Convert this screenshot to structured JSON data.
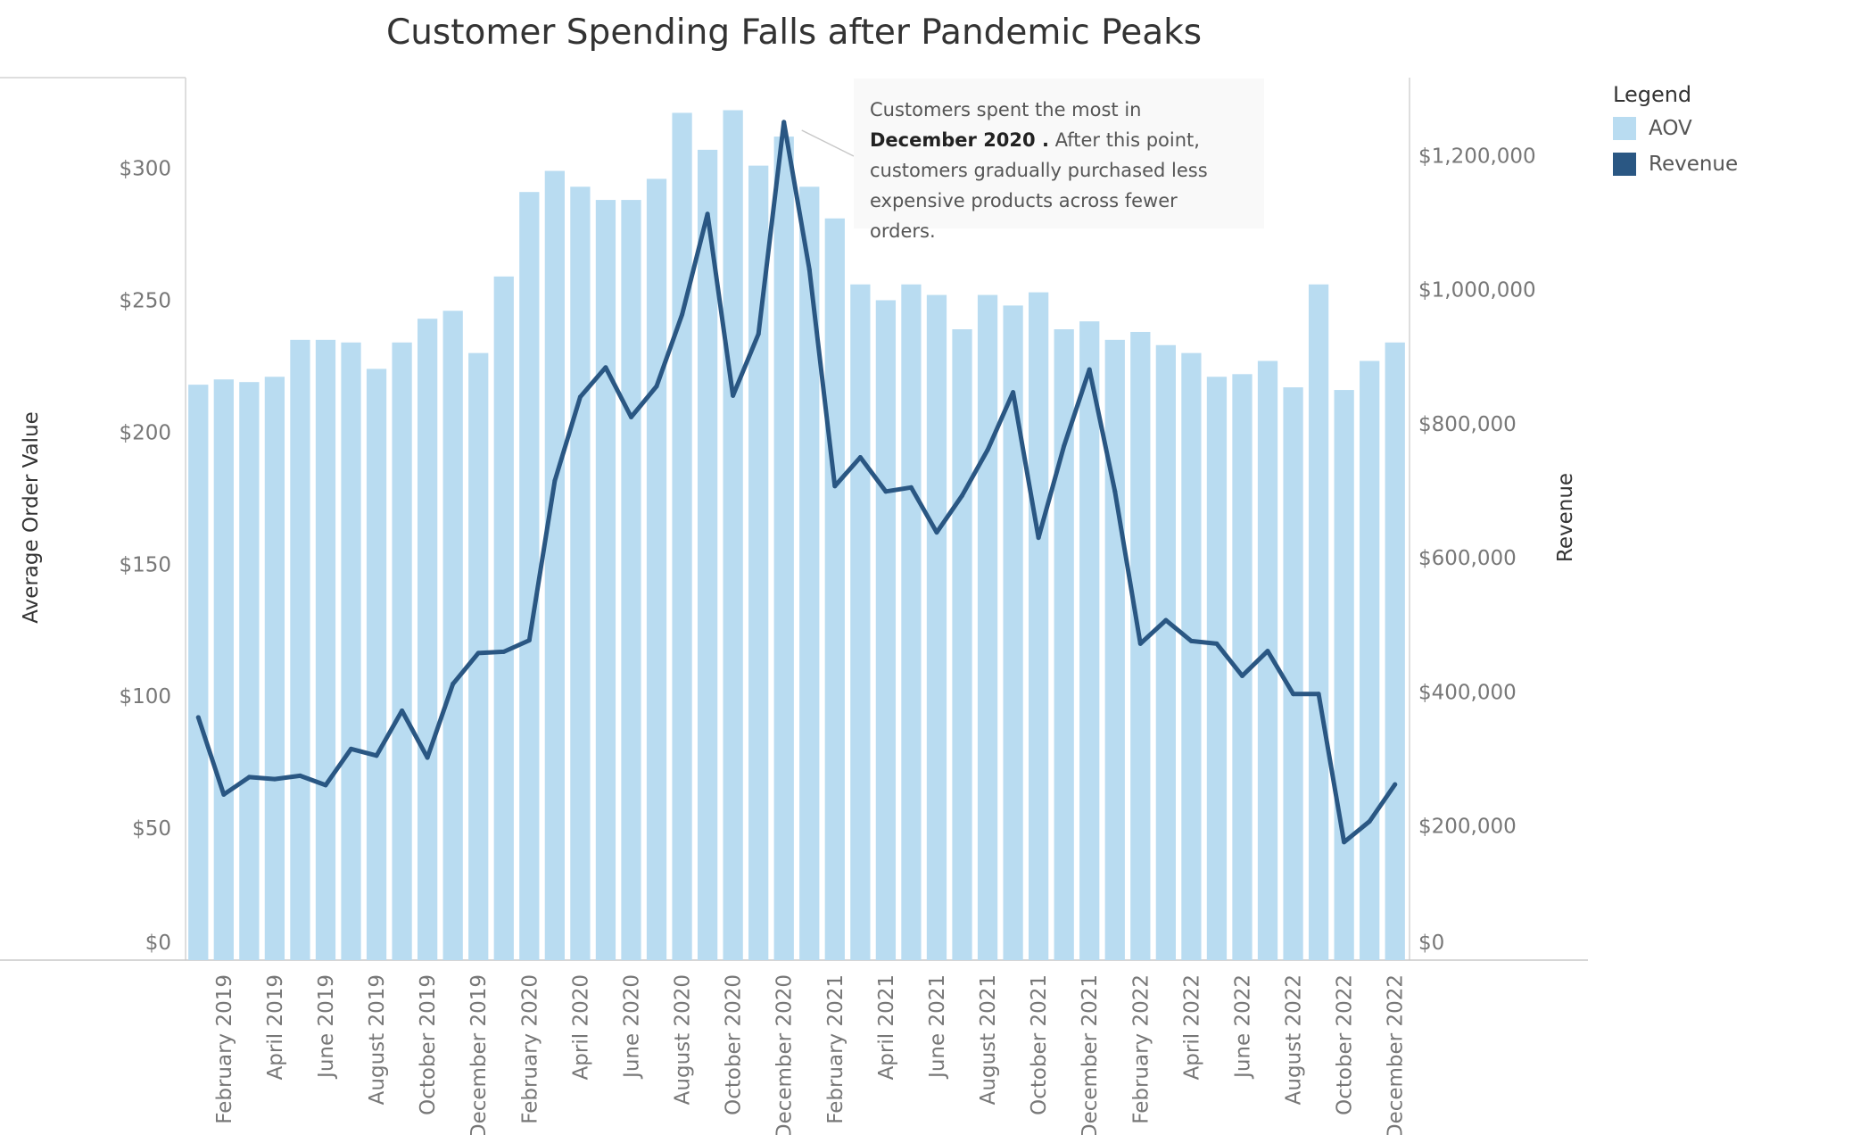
{
  "title": "Customer Spending Falls after Pandemic Peaks",
  "legend": {
    "title": "Legend",
    "items": [
      {
        "label": "AOV",
        "color": "#b9dcf1"
      },
      {
        "label": "Revenue",
        "color": "#2a5783"
      }
    ]
  },
  "annotation": {
    "text_before": "Customers spent the most in ",
    "highlight": "December 2020 .",
    "text_after": " After this point, customers gradually purchased less expensive products across fewer orders."
  },
  "chart_data": {
    "type": "bar",
    "categories": [
      "January 2019",
      "February 2019",
      "March 2019",
      "April 2019",
      "May 2019",
      "June 2019",
      "July 2019",
      "August 2019",
      "September 2019",
      "October 2019",
      "November 2019",
      "December 2019",
      "January 2020",
      "February 2020",
      "March 2020",
      "April 2020",
      "May 2020",
      "June 2020",
      "July 2020",
      "August 2020",
      "September 2020",
      "October 2020",
      "November 2020",
      "December 2020",
      "January 2021",
      "February 2021",
      "March 2021",
      "April 2021",
      "May 2021",
      "June 2021",
      "July 2021",
      "August 2021",
      "September 2021",
      "October 2021",
      "November 2021",
      "December 2021",
      "January 2022",
      "February 2022",
      "March 2022",
      "April 2022",
      "May 2022",
      "June 2022",
      "July 2022",
      "August 2022",
      "September 2022",
      "October 2022",
      "November 2022",
      "December 2022"
    ],
    "x_tick_labels": [
      "February 2019",
      "April 2019",
      "June 2019",
      "August 2019",
      "October 2019",
      "December 2019",
      "February 2020",
      "April 2020",
      "June 2020",
      "August 2020",
      "October 2020",
      "December 2020",
      "February 2021",
      "April 2021",
      "June 2021",
      "August 2021",
      "October 2021",
      "December 2021",
      "February 2022",
      "April 2022",
      "June 2022",
      "August 2022",
      "October 2022",
      "December 2022"
    ],
    "series": [
      {
        "name": "AOV",
        "axis": "left",
        "type": "bar",
        "values": [
          218,
          220,
          219,
          221,
          235,
          235,
          234,
          224,
          234,
          243,
          246,
          230,
          259,
          291,
          299,
          293,
          288,
          288,
          296,
          321,
          307,
          322,
          301,
          312,
          293,
          281,
          256,
          250,
          256,
          252,
          239,
          252,
          248,
          253,
          239,
          242,
          235,
          238,
          233,
          230,
          221,
          222,
          227,
          217,
          256,
          216,
          227,
          234
        ]
      },
      {
        "name": "Revenue",
        "axis": "right",
        "type": "line",
        "values": [
          362000,
          247000,
          273000,
          270000,
          275000,
          261000,
          315000,
          305000,
          372000,
          302000,
          412000,
          458000,
          460000,
          477000,
          715000,
          840000,
          884000,
          810000,
          856000,
          963000,
          1113000,
          842000,
          934000,
          1250000,
          1030000,
          707000,
          750000,
          699000,
          705000,
          638000,
          693000,
          761000,
          847000,
          630000,
          767000,
          881000,
          699000,
          472000,
          507000,
          476000,
          472000,
          424000,
          461000,
          397000,
          397000,
          176000,
          207000,
          262000
        ]
      }
    ],
    "y_left": {
      "label": "Average Order Value",
      "ticks": [
        "$0",
        "$50",
        "$100",
        "$150",
        "$200",
        "$250",
        "$300"
      ],
      "range": [
        0,
        334
      ]
    },
    "y_right": {
      "label": "Revenue",
      "ticks": [
        "$0",
        "$200,000",
        "$400,000",
        "$600,000",
        "$800,000",
        "$1,000,000",
        "$1,200,000"
      ],
      "range": [
        0,
        1315000
      ]
    },
    "grid": false,
    "legend_position": "top-right"
  }
}
